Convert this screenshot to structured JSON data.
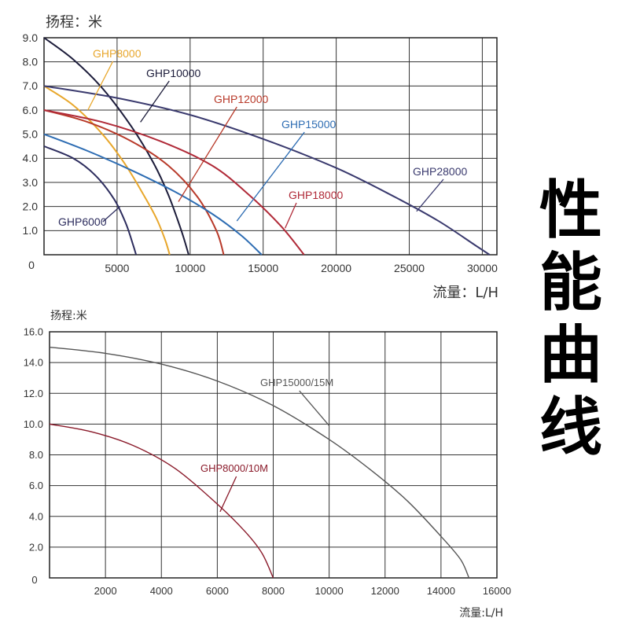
{
  "side_title": [
    "性",
    "能",
    "曲",
    "线"
  ],
  "chart_data": [
    {
      "type": "line",
      "ylabel": "扬程：米",
      "xlabel": "流量：L/H",
      "xlim": [
        0,
        31000
      ],
      "ylim": [
        0,
        9
      ],
      "x_ticks": [
        5000,
        10000,
        15000,
        20000,
        25000,
        30000
      ],
      "x_tick_labels": [
        "5000",
        "10000",
        "15000",
        "20000",
        "25000",
        "30000"
      ],
      "y_ticks": [
        1,
        2,
        3,
        4,
        5,
        6,
        7,
        8,
        9
      ],
      "y_tick_labels": [
        "1.0",
        "2.0",
        "3.0",
        "4.0",
        "5.0",
        "6.0",
        "7.0",
        "8.0",
        "9.0"
      ],
      "origin_label": "0",
      "grid": true,
      "series": [
        {
          "name": "GHP6000",
          "color": "#2d2d5e",
          "x": [
            0,
            2000,
            3500,
            4800,
            5600,
            6100,
            6300
          ],
          "y": [
            4.5,
            4.0,
            3.3,
            2.3,
            1.3,
            0.4,
            0
          ]
        },
        {
          "name": "GHP8000",
          "color": "#e8a72c",
          "x": [
            0,
            2000,
            4000,
            5500,
            6800,
            7700,
            8300,
            8600
          ],
          "y": [
            7.0,
            6.2,
            5.0,
            3.8,
            2.5,
            1.5,
            0.6,
            0
          ]
        },
        {
          "name": "GHP10000",
          "color": "#1c1c3a",
          "x": [
            0,
            2000,
            4000,
            6000,
            7500,
            8500,
            9400,
            9900
          ],
          "y": [
            9.0,
            8.1,
            6.9,
            5.3,
            3.8,
            2.5,
            1.0,
            0
          ]
        },
        {
          "name": "GHP12000",
          "color": "#b83a2a",
          "x": [
            0,
            3000,
            6000,
            8500,
            10500,
            11800,
            12300
          ],
          "y": [
            6.0,
            5.5,
            4.7,
            3.7,
            2.4,
            1.0,
            0
          ]
        },
        {
          "name": "GHP15000",
          "color": "#2e6db3",
          "x": [
            0,
            3000,
            6000,
            9000,
            11500,
            13500,
            14900
          ],
          "y": [
            5.0,
            4.3,
            3.5,
            2.6,
            1.7,
            0.8,
            0
          ]
        },
        {
          "name": "GHP18000",
          "color": "#b02a38",
          "x": [
            0,
            4000,
            8000,
            11500,
            14000,
            16200,
            17800
          ],
          "y": [
            6.0,
            5.5,
            4.7,
            3.7,
            2.5,
            1.2,
            0
          ]
        },
        {
          "name": "GHP28000",
          "color": "#3a3a6e",
          "x": [
            0,
            5000,
            10000,
            15000,
            20000,
            24000,
            27000,
            29500,
            30500
          ],
          "y": [
            7.0,
            6.5,
            5.8,
            4.8,
            3.6,
            2.4,
            1.4,
            0.4,
            0
          ]
        }
      ],
      "annotations": [
        {
          "text": "GHP8000",
          "series": "GHP8000",
          "color": "#e8a72c",
          "at_x": 3000,
          "at_y": 6.0
        },
        {
          "text": "GHP10000",
          "series": "GHP10000",
          "color": "#1c1c3a",
          "at_x": 6600,
          "at_y": 5.5
        },
        {
          "text": "GHP12000",
          "series": "GHP12000",
          "color": "#b83a2a",
          "at_x": 9200,
          "at_y": 2.2
        },
        {
          "text": "GHP15000",
          "series": "GHP15000",
          "color": "#2e6db3",
          "at_x": 13200,
          "at_y": 1.4
        },
        {
          "text": "GHP28000",
          "series": "GHP28000",
          "color": "#3a3a6e",
          "at_x": 25500,
          "at_y": 1.8
        },
        {
          "text": "GHP18000",
          "series": "GHP18000",
          "color": "#b02a38",
          "at_x": 16500,
          "at_y": 1.1
        },
        {
          "text": "GHP6000",
          "series": "GHP6000",
          "color": "#2d2d5e",
          "at_x": 5200,
          "at_y": 2.0
        }
      ]
    },
    {
      "type": "line",
      "ylabel": "扬程:米",
      "xlabel": "流量:L/H",
      "xlim": [
        0,
        16000
      ],
      "ylim": [
        0,
        16
      ],
      "x_ticks": [
        2000,
        4000,
        6000,
        8000,
        10000,
        12000,
        14000,
        16000
      ],
      "x_tick_labels": [
        "2000",
        "4000",
        "6000",
        "8000",
        "10000",
        "12000",
        "14000",
        "16000"
      ],
      "y_ticks": [
        2,
        4,
        6,
        8,
        10,
        12,
        14,
        16
      ],
      "y_tick_labels": [
        "2.0",
        "4.0",
        "6.0",
        "8.0",
        "10.0",
        "12.0",
        "14.0",
        "16.0"
      ],
      "origin_label": "0",
      "grid": true,
      "series": [
        {
          "name": "GHP15000/15M",
          "color": "#555555",
          "x": [
            0,
            2000,
            4000,
            6000,
            8000,
            10000,
            11500,
            12800,
            14000,
            14700,
            15000
          ],
          "y": [
            15.0,
            14.6,
            13.9,
            12.8,
            11.2,
            9.0,
            7.0,
            5.0,
            2.7,
            1.2,
            0
          ]
        },
        {
          "name": "GHP8000/10M",
          "color": "#8a1a2a",
          "x": [
            0,
            1500,
            3000,
            4500,
            6000,
            7000,
            7600,
            8000
          ],
          "y": [
            10.0,
            9.5,
            8.6,
            7.1,
            4.8,
            3.0,
            1.6,
            0
          ]
        }
      ],
      "annotations": [
        {
          "text": "GHP15000/15M",
          "series": "GHP15000/15M",
          "color": "#555555",
          "at_x": 10000,
          "at_y": 9.9
        },
        {
          "text": "GHP8000/10M",
          "series": "GHP8000/10M",
          "color": "#8a1a2a",
          "at_x": 6100,
          "at_y": 4.3
        }
      ]
    }
  ]
}
